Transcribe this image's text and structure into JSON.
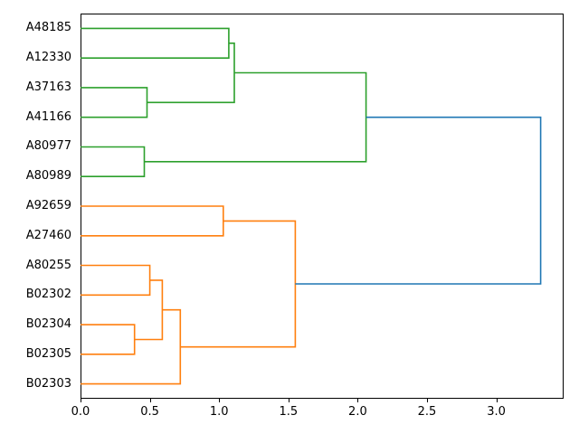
{
  "chart_data": {
    "type": "dendrogram",
    "orientation": "right",
    "title": "",
    "xlabel": "",
    "ylabel": "",
    "grid": false,
    "legend": null,
    "leaves": [
      "A48185",
      "A12330",
      "A37163",
      "A41166",
      "A80977",
      "A80989",
      "A92659",
      "A27460",
      "A80255",
      "B02302",
      "B02304",
      "B02305",
      "B02303"
    ],
    "links": [
      {
        "id": "G1",
        "children": [
          "A48185",
          "A12330"
        ],
        "distance": 1.07,
        "color": "green"
      },
      {
        "id": "G2",
        "children": [
          "A37163",
          "A41166"
        ],
        "distance": 0.48,
        "color": "green"
      },
      {
        "id": "G3",
        "children": [
          "G1",
          "G2"
        ],
        "distance": 1.11,
        "color": "green"
      },
      {
        "id": "G4",
        "children": [
          "A80977",
          "A80989"
        ],
        "distance": 0.46,
        "color": "green"
      },
      {
        "id": "G5",
        "children": [
          "G3",
          "G4"
        ],
        "distance": 2.06,
        "color": "green"
      },
      {
        "id": "O1",
        "children": [
          "A92659",
          "A27460"
        ],
        "distance": 1.03,
        "color": "orange"
      },
      {
        "id": "O2",
        "children": [
          "A80255",
          "B02302"
        ],
        "distance": 0.5,
        "color": "orange"
      },
      {
        "id": "O3",
        "children": [
          "B02304",
          "B02305"
        ],
        "distance": 0.39,
        "color": "orange"
      },
      {
        "id": "O4",
        "children": [
          "O2",
          "O3"
        ],
        "distance": 0.59,
        "color": "orange"
      },
      {
        "id": "O5",
        "children": [
          "O4",
          "B02303"
        ],
        "distance": 0.72,
        "color": "orange"
      },
      {
        "id": "O6",
        "children": [
          "O1",
          "O5"
        ],
        "distance": 1.55,
        "color": "orange"
      },
      {
        "id": "ROOT",
        "children": [
          "G5",
          "O6"
        ],
        "distance": 3.32,
        "color": "blue"
      }
    ],
    "colors": {
      "green": "#2ca02c",
      "orange": "#ff7f0e",
      "blue": "#1f77b4"
    },
    "x_axis": {
      "ticks": [
        "0.0",
        "0.5",
        "1.0",
        "1.5",
        "2.0",
        "2.5",
        "3.0"
      ],
      "tick_values": [
        0,
        0.5,
        1.0,
        1.5,
        2.0,
        2.5,
        3.0
      ],
      "min": 0,
      "max": 3.486
    }
  }
}
